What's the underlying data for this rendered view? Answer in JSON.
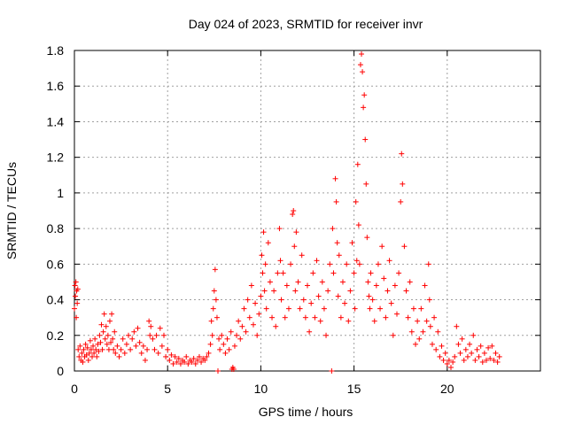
{
  "chart_data": {
    "type": "scatter",
    "title": "Day 024 of 2023, SRMTID for receiver invr",
    "xlabel": "GPS time / hours",
    "ylabel": "SRMTID / TECUs",
    "xlim": [
      0,
      25
    ],
    "ylim": [
      0,
      1.8
    ],
    "xticks": [
      0,
      5,
      10,
      15,
      20
    ],
    "xtick_labels": [
      "0",
      "5",
      "10",
      "15",
      "20"
    ],
    "yticks": [
      0,
      0.2,
      0.4,
      0.6,
      0.8,
      1.0,
      1.2,
      1.4,
      1.6,
      1.8
    ],
    "ytick_labels": [
      "0",
      "0.2",
      "0.4",
      "0.6",
      "0.8",
      "1",
      "1.2",
      "1.4",
      "1.6",
      "1.8"
    ],
    "grid": true,
    "marker": "+",
    "color": "#ff0000",
    "series": [
      {
        "name": "SRMTID",
        "points": [
          [
            0.0,
            0.35
          ],
          [
            0.03,
            0.48
          ],
          [
            0.05,
            0.42
          ],
          [
            0.08,
            0.5
          ],
          [
            0.1,
            0.3
          ],
          [
            0.12,
            0.45
          ],
          [
            0.15,
            0.38
          ],
          [
            0.18,
            0.46
          ],
          [
            0.2,
            0.12
          ],
          [
            0.25,
            0.08
          ],
          [
            0.3,
            0.14
          ],
          [
            0.35,
            0.06
          ],
          [
            0.4,
            0.1
          ],
          [
            0.45,
            0.05
          ],
          [
            0.5,
            0.12
          ],
          [
            0.55,
            0.08
          ],
          [
            0.6,
            0.15
          ],
          [
            0.65,
            0.09
          ],
          [
            0.7,
            0.13
          ],
          [
            0.75,
            0.06
          ],
          [
            0.8,
            0.1
          ],
          [
            0.85,
            0.17
          ],
          [
            0.9,
            0.12
          ],
          [
            0.95,
            0.08
          ],
          [
            1.0,
            0.14
          ],
          [
            1.05,
            0.1
          ],
          [
            1.1,
            0.18
          ],
          [
            1.15,
            0.12
          ],
          [
            1.2,
            0.08
          ],
          [
            1.25,
            0.15
          ],
          [
            1.3,
            0.11
          ],
          [
            1.35,
            0.2
          ],
          [
            1.4,
            0.16
          ],
          [
            1.45,
            0.26
          ],
          [
            1.5,
            0.12
          ],
          [
            1.55,
            0.22
          ],
          [
            1.6,
            0.32
          ],
          [
            1.65,
            0.18
          ],
          [
            1.7,
            0.25
          ],
          [
            1.75,
            0.15
          ],
          [
            1.8,
            0.2
          ],
          [
            1.85,
            0.12
          ],
          [
            1.9,
            0.28
          ],
          [
            1.95,
            0.16
          ],
          [
            2.0,
            0.32
          ],
          [
            2.05,
            0.18
          ],
          [
            2.1,
            0.12
          ],
          [
            2.15,
            0.22
          ],
          [
            2.2,
            0.1
          ],
          [
            2.3,
            0.14
          ],
          [
            2.4,
            0.08
          ],
          [
            2.5,
            0.12
          ],
          [
            2.6,
            0.18
          ],
          [
            2.7,
            0.1
          ],
          [
            2.8,
            0.15
          ],
          [
            2.9,
            0.2
          ],
          [
            3.0,
            0.12
          ],
          [
            3.1,
            0.18
          ],
          [
            3.2,
            0.22
          ],
          [
            3.3,
            0.14
          ],
          [
            3.4,
            0.24
          ],
          [
            3.5,
            0.16
          ],
          [
            3.6,
            0.1
          ],
          [
            3.7,
            0.14
          ],
          [
            3.8,
            0.06
          ],
          [
            3.9,
            0.12
          ],
          [
            4.0,
            0.28
          ],
          [
            4.05,
            0.2
          ],
          [
            4.1,
            0.25
          ],
          [
            4.2,
            0.18
          ],
          [
            4.3,
            0.12
          ],
          [
            4.4,
            0.2
          ],
          [
            4.5,
            0.1
          ],
          [
            4.6,
            0.24
          ],
          [
            4.7,
            0.14
          ],
          [
            4.8,
            0.2
          ],
          [
            4.9,
            0.08
          ],
          [
            5.0,
            0.12
          ],
          [
            5.1,
            0.06
          ],
          [
            5.2,
            0.09
          ],
          [
            5.3,
            0.04
          ],
          [
            5.4,
            0.08
          ],
          [
            5.5,
            0.05
          ],
          [
            5.6,
            0.07
          ],
          [
            5.7,
            0.04
          ],
          [
            5.8,
            0.06
          ],
          [
            5.9,
            0.05
          ],
          [
            6.0,
            0.08
          ],
          [
            6.1,
            0.04
          ],
          [
            6.2,
            0.06
          ],
          [
            6.3,
            0.05
          ],
          [
            6.4,
            0.07
          ],
          [
            6.5,
            0.04
          ],
          [
            6.6,
            0.06
          ],
          [
            6.7,
            0.08
          ],
          [
            6.8,
            0.05
          ],
          [
            6.9,
            0.07
          ],
          [
            7.0,
            0.06
          ],
          [
            7.1,
            0.08
          ],
          [
            7.2,
            0.1
          ],
          [
            7.3,
            0.15
          ],
          [
            7.35,
            0.28
          ],
          [
            7.4,
            0.2
          ],
          [
            7.45,
            0.35
          ],
          [
            7.5,
            0.45
          ],
          [
            7.55,
            0.57
          ],
          [
            7.6,
            0.4
          ],
          [
            7.65,
            0.3
          ],
          [
            7.7,
            0.0
          ],
          [
            7.75,
            0.18
          ],
          [
            7.8,
            0.12
          ],
          [
            7.9,
            0.2
          ],
          [
            8.0,
            0.15
          ],
          [
            8.1,
            0.1
          ],
          [
            8.2,
            0.18
          ],
          [
            8.3,
            0.12
          ],
          [
            8.4,
            0.22
          ],
          [
            8.45,
            0.01
          ],
          [
            8.5,
            0.02
          ],
          [
            8.55,
            0.01
          ],
          [
            8.6,
            0.14
          ],
          [
            8.7,
            0.2
          ],
          [
            8.8,
            0.28
          ],
          [
            8.9,
            0.18
          ],
          [
            9.0,
            0.25
          ],
          [
            9.1,
            0.35
          ],
          [
            9.2,
            0.22
          ],
          [
            9.3,
            0.4
          ],
          [
            9.4,
            0.3
          ],
          [
            9.5,
            0.48
          ],
          [
            9.6,
            0.26
          ],
          [
            9.7,
            0.38
          ],
          [
            9.8,
            0.2
          ],
          [
            9.9,
            0.32
          ],
          [
            10.0,
            0.42
          ],
          [
            10.05,
            0.65
          ],
          [
            10.1,
            0.55
          ],
          [
            10.15,
            0.78
          ],
          [
            10.2,
            0.45
          ],
          [
            10.25,
            0.6
          ],
          [
            10.3,
            0.35
          ],
          [
            10.4,
            0.72
          ],
          [
            10.5,
            0.5
          ],
          [
            10.6,
            0.3
          ],
          [
            10.7,
            0.45
          ],
          [
            10.8,
            0.25
          ],
          [
            10.9,
            0.55
          ],
          [
            11.0,
            0.8
          ],
          [
            11.05,
            0.62
          ],
          [
            11.1,
            0.4
          ],
          [
            11.2,
            0.55
          ],
          [
            11.3,
            0.3
          ],
          [
            11.4,
            0.48
          ],
          [
            11.5,
            0.35
          ],
          [
            11.6,
            0.6
          ],
          [
            11.7,
            0.88
          ],
          [
            11.75,
            0.9
          ],
          [
            11.8,
            0.7
          ],
          [
            11.85,
            0.45
          ],
          [
            11.9,
            0.78
          ],
          [
            12.0,
            0.5
          ],
          [
            12.1,
            0.35
          ],
          [
            12.2,
            0.65
          ],
          [
            12.3,
            0.4
          ],
          [
            12.4,
            0.3
          ],
          [
            12.5,
            0.48
          ],
          [
            12.6,
            0.22
          ],
          [
            12.7,
            0.38
          ],
          [
            12.8,
            0.55
          ],
          [
            12.9,
            0.3
          ],
          [
            13.0,
            0.62
          ],
          [
            13.1,
            0.42
          ],
          [
            13.2,
            0.28
          ],
          [
            13.3,
            0.5
          ],
          [
            13.4,
            0.35
          ],
          [
            13.5,
            0.2
          ],
          [
            13.6,
            0.45
          ],
          [
            13.7,
            0.6
          ],
          [
            13.8,
            0.0
          ],
          [
            13.85,
            0.8
          ],
          [
            13.9,
            0.55
          ],
          [
            14.0,
            1.08
          ],
          [
            14.05,
            0.95
          ],
          [
            14.1,
            0.72
          ],
          [
            14.15,
            0.42
          ],
          [
            14.2,
            0.65
          ],
          [
            14.3,
            0.3
          ],
          [
            14.4,
            0.5
          ],
          [
            14.5,
            0.38
          ],
          [
            14.6,
            0.6
          ],
          [
            14.7,
            0.28
          ],
          [
            14.8,
            0.45
          ],
          [
            14.9,
            0.72
          ],
          [
            15.0,
            0.55
          ],
          [
            15.05,
            0.35
          ],
          [
            15.1,
            0.95
          ],
          [
            15.15,
            0.62
          ],
          [
            15.2,
            1.16
          ],
          [
            15.25,
            0.82
          ],
          [
            15.3,
            0.6
          ],
          [
            15.35,
            1.72
          ],
          [
            15.4,
            1.78
          ],
          [
            15.45,
            1.68
          ],
          [
            15.5,
            1.48
          ],
          [
            15.55,
            1.55
          ],
          [
            15.6,
            1.3
          ],
          [
            15.65,
            1.05
          ],
          [
            15.7,
            0.75
          ],
          [
            15.75,
            0.5
          ],
          [
            15.8,
            0.42
          ],
          [
            15.85,
            0.35
          ],
          [
            15.9,
            0.55
          ],
          [
            16.0,
            0.4
          ],
          [
            16.1,
            0.28
          ],
          [
            16.2,
            0.48
          ],
          [
            16.3,
            0.6
          ],
          [
            16.4,
            0.35
          ],
          [
            16.5,
            0.7
          ],
          [
            16.6,
            0.52
          ],
          [
            16.7,
            0.3
          ],
          [
            16.8,
            0.45
          ],
          [
            16.9,
            0.62
          ],
          [
            17.0,
            0.38
          ],
          [
            17.1,
            0.2
          ],
          [
            17.2,
            0.48
          ],
          [
            17.3,
            0.32
          ],
          [
            17.4,
            0.55
          ],
          [
            17.5,
            0.95
          ],
          [
            17.55,
            1.22
          ],
          [
            17.6,
            1.05
          ],
          [
            17.7,
            0.7
          ],
          [
            17.8,
            0.45
          ],
          [
            17.9,
            0.3
          ],
          [
            18.0,
            0.5
          ],
          [
            18.1,
            0.22
          ],
          [
            18.2,
            0.35
          ],
          [
            18.3,
            0.15
          ],
          [
            18.4,
            0.28
          ],
          [
            18.5,
            0.18
          ],
          [
            18.6,
            0.35
          ],
          [
            18.7,
            0.22
          ],
          [
            18.8,
            0.48
          ],
          [
            18.9,
            0.28
          ],
          [
            19.0,
            0.6
          ],
          [
            19.05,
            0.4
          ],
          [
            19.1,
            0.25
          ],
          [
            19.2,
            0.15
          ],
          [
            19.3,
            0.3
          ],
          [
            19.4,
            0.12
          ],
          [
            19.5,
            0.22
          ],
          [
            19.6,
            0.08
          ],
          [
            19.7,
            0.14
          ],
          [
            19.8,
            0.06
          ],
          [
            19.9,
            0.1
          ],
          [
            20.0,
            0.04
          ],
          [
            20.1,
            0.06
          ],
          [
            20.2,
            0.02
          ],
          [
            20.3,
            0.05
          ],
          [
            20.4,
            0.08
          ],
          [
            20.5,
            0.25
          ],
          [
            20.6,
            0.15
          ],
          [
            20.7,
            0.1
          ],
          [
            20.8,
            0.18
          ],
          [
            20.9,
            0.06
          ],
          [
            21.0,
            0.12
          ],
          [
            21.1,
            0.08
          ],
          [
            21.2,
            0.15
          ],
          [
            21.3,
            0.1
          ],
          [
            21.4,
            0.2
          ],
          [
            21.5,
            0.06
          ],
          [
            21.6,
            0.12
          ],
          [
            21.7,
            0.08
          ],
          [
            21.8,
            0.14
          ],
          [
            21.9,
            0.05
          ],
          [
            22.0,
            0.1
          ],
          [
            22.1,
            0.06
          ],
          [
            22.2,
            0.13
          ],
          [
            22.3,
            0.07
          ],
          [
            22.4,
            0.14
          ],
          [
            22.5,
            0.06
          ],
          [
            22.6,
            0.1
          ],
          [
            22.7,
            0.05
          ],
          [
            22.8,
            0.08
          ]
        ]
      }
    ]
  }
}
